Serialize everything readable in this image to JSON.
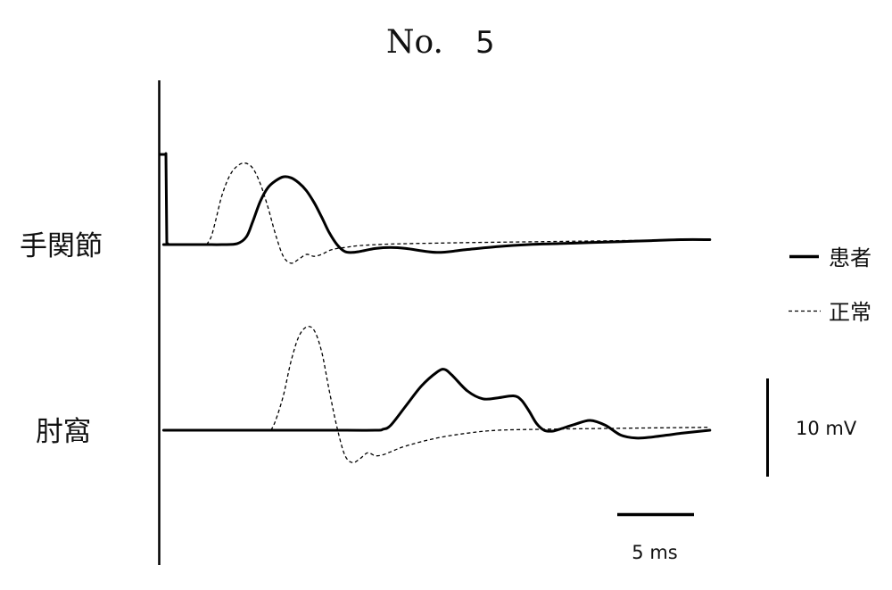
{
  "title": {
    "prefix": "No.",
    "number": "5"
  },
  "chart_data": {
    "type": "line",
    "title": "No. 5",
    "xlabel": "",
    "ylabel": "",
    "scale_bars": {
      "time": {
        "label": "5 ms",
        "value": 5,
        "unit": "ms"
      },
      "amplitude": {
        "label": "10 mV",
        "value": 10,
        "unit": "mV"
      }
    },
    "legend": {
      "position": "right",
      "entries": [
        {
          "label": "患者",
          "style": "solid"
        },
        {
          "label": "正常",
          "style": "dashed"
        }
      ]
    },
    "traces": [
      {
        "site": "手関節",
        "series": [
          {
            "name": "患者",
            "style": "solid",
            "x_ms": [
              0.2,
              0.5,
              1.0,
              2.0,
              3.0,
              4.0,
              5.0,
              5.6,
              6.0,
              6.5,
              7.0,
              7.5,
              8.0,
              8.5,
              9.0,
              9.5,
              10.0,
              10.5,
              11.0,
              11.5,
              12.0,
              12.5,
              13.0,
              14.0,
              15.0,
              16.0,
              18.0,
              20.0,
              22.0,
              24.0,
              26.0,
              28.0,
              30.0,
              32.0,
              34.0,
              35.8
            ],
            "y_mV": [
              0,
              0,
              0,
              0,
              0,
              0,
              0.1,
              0.8,
              2.3,
              4.4,
              5.8,
              6.5,
              6.9,
              6.8,
              6.3,
              5.5,
              4.3,
              2.8,
              1.2,
              0,
              -0.7,
              -0.8,
              -0.7,
              -0.4,
              -0.3,
              -0.4,
              -0.8,
              -0.5,
              -0.2,
              0,
              0.1,
              0.2,
              0.3,
              0.4,
              0.5,
              0.5
            ]
          },
          {
            "name": "正常",
            "style": "dashed",
            "x_ms": [
              3.0,
              3.3,
              3.6,
              4.0,
              4.5,
              5.0,
              5.5,
              6.0,
              6.5,
              7.0,
              7.5,
              8.0,
              8.5,
              9.0,
              9.5,
              10.0,
              10.5,
              11.0,
              11.5,
              12.0,
              13.0,
              15.0,
              18.0,
              20.0,
              25.0,
              30.0,
              35.8
            ],
            "y_mV": [
              0,
              0.8,
              2.5,
              5.0,
              7.0,
              8.0,
              8.3,
              7.8,
              6.2,
              3.8,
              1.0,
              -1.2,
              -1.9,
              -1.5,
              -1.0,
              -1.2,
              -1.0,
              -0.6,
              -0.4,
              -0.3,
              -0.1,
              0.05,
              0.15,
              0.2,
              0.3,
              0.4,
              0.5
            ]
          }
        ]
      },
      {
        "site": "肘窩",
        "series": [
          {
            "name": "患者",
            "style": "solid",
            "x_ms": [
              0.2,
              2.0,
              5.0,
              8.0,
              11.0,
              14.0,
              14.5,
              15.0,
              16.0,
              17.0,
              18.0,
              18.5,
              19.0,
              20.0,
              21.0,
              22.0,
              23.0,
              23.5,
              24.0,
              24.5,
              25.0,
              25.5,
              26.0,
              27.0,
              28.0,
              29.0,
              30.0,
              31.0,
              32.0,
              33.0,
              34.0,
              35.8
            ],
            "y_mV": [
              0,
              0,
              0,
              0,
              0,
              0,
              0.1,
              0.5,
              2.5,
              4.5,
              5.9,
              6.2,
              5.6,
              4.0,
              3.2,
              3.3,
              3.5,
              3.1,
              2.0,
              0.7,
              0,
              -0.1,
              0.1,
              0.6,
              1.0,
              0.5,
              -0.5,
              -0.8,
              -0.7,
              -0.5,
              -0.3,
              0
            ]
          },
          {
            "name": "正常",
            "style": "dashed",
            "x_ms": [
              7.2,
              7.5,
              8.0,
              8.5,
              9.0,
              9.5,
              10.0,
              10.5,
              11.0,
              11.5,
              12.0,
              12.5,
              13.0,
              13.5,
              14.0,
              14.5,
              15.0,
              16.0,
              18.0,
              20.0,
              22.0,
              25.0,
              30.0,
              35.8
            ],
            "y_mV": [
              0,
              1.0,
              3.5,
              7.0,
              9.5,
              10.5,
              10.2,
              8.0,
              4.0,
              0.3,
              -2.5,
              -3.3,
              -2.9,
              -2.3,
              -2.6,
              -2.5,
              -2.2,
              -1.6,
              -0.8,
              -0.3,
              0,
              0.1,
              0.2,
              0.3
            ]
          }
        ]
      }
    ]
  }
}
